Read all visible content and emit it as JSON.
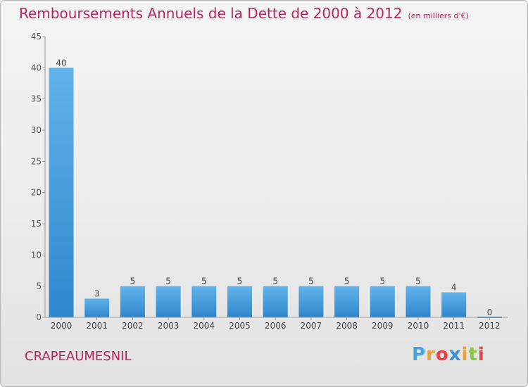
{
  "title": "Remboursements Annuels de la Dette de 2000 à 2012",
  "unit": "(en milliers d'€)",
  "city": "CRAPEAUMESNIL",
  "brand": {
    "letters": [
      "P",
      "r",
      "o",
      "x",
      "i",
      "t",
      "i"
    ],
    "colors": [
      "#4aa3df",
      "#f0a030",
      "#e94040",
      "#3a8fd8",
      "#f0a030",
      "#8ac640",
      "#e94040"
    ]
  },
  "colors": {
    "bar": "#3d96d8",
    "bar_top": "#62b3ea",
    "title": "#b7245f"
  },
  "chart_data": {
    "type": "bar",
    "categories": [
      "2000",
      "2001",
      "2002",
      "2003",
      "2004",
      "2005",
      "2006",
      "2007",
      "2008",
      "2009",
      "2010",
      "2011",
      "2012"
    ],
    "values": [
      40,
      3,
      5,
      5,
      5,
      5,
      5,
      5,
      5,
      5,
      5,
      4,
      0
    ],
    "data_labels": [
      "40",
      "3",
      "5",
      "5",
      "5",
      "5",
      "5",
      "5",
      "5",
      "5",
      "5",
      "4",
      "0"
    ],
    "y_ticks": [
      "0",
      "5",
      "10",
      "15",
      "20",
      "25",
      "30",
      "35",
      "40",
      "45"
    ],
    "ylim": [
      0,
      45
    ],
    "grid": false,
    "legend": "none"
  }
}
